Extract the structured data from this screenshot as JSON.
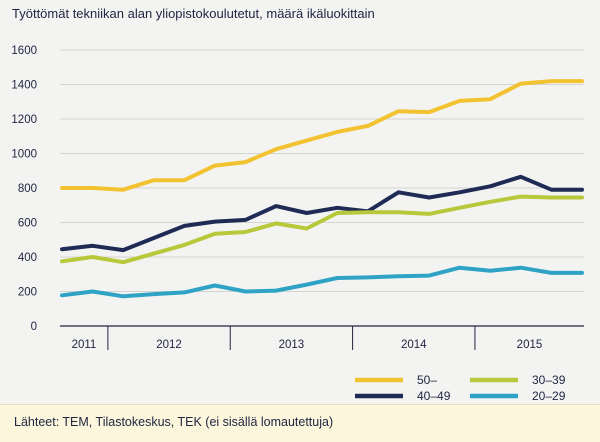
{
  "title": "Työttömät tekniikan alan yliopistokoulutetut, määrä ikäluokittain",
  "source": "Lähteet: TEM, Tilastokeskus, TEK (ei sisällä lomautettuja)",
  "colors": {
    "background": "#f3f4f2",
    "footer": "#fbf6dc",
    "axis": "#1f2440"
  },
  "chart_data": {
    "type": "line",
    "title": "Työttömät tekniikan alan yliopistokoulutetut, määrä ikäluokittain",
    "xlabel": "",
    "ylabel": "",
    "ylim": [
      0,
      1600
    ],
    "yticks": [
      0,
      200,
      400,
      600,
      800,
      1000,
      1200,
      1400,
      1600
    ],
    "year_labels": [
      "2011",
      "2012",
      "2013",
      "2014",
      "2015"
    ],
    "x": [
      "2011 Q3",
      "2011 Q4",
      "2012 Q1",
      "2012 Q2",
      "2012 Q3",
      "2012 Q4",
      "2013 Q1",
      "2013 Q2",
      "2013 Q3",
      "2013 Q4",
      "2014 Q1",
      "2014 Q2",
      "2014 Q3",
      "2014 Q4",
      "2015 Q1",
      "2015 Q2",
      "2015 Q3",
      "2015 Q4"
    ],
    "grid": true,
    "legend_position": "bottom-right",
    "series": [
      {
        "name": "50–",
        "color": "#f2c230",
        "values": [
          800,
          800,
          790,
          845,
          845,
          930,
          950,
          1025,
          1075,
          1125,
          1160,
          1245,
          1240,
          1305,
          1315,
          1405,
          1420,
          1420
        ]
      },
      {
        "name": "40–49",
        "color": "#1f2a55",
        "values": [
          445,
          465,
          440,
          510,
          580,
          605,
          615,
          695,
          655,
          685,
          665,
          775,
          745,
          775,
          810,
          865,
          790,
          790
        ]
      },
      {
        "name": "30–39",
        "color": "#b7c83a",
        "values": [
          375,
          400,
          370,
          420,
          470,
          535,
          545,
          595,
          565,
          655,
          660,
          660,
          650,
          685,
          720,
          750,
          745,
          745
        ]
      },
      {
        "name": "20–29",
        "color": "#2fa3c5",
        "values": [
          178,
          200,
          172,
          185,
          195,
          235,
          200,
          205,
          240,
          278,
          282,
          288,
          292,
          338,
          320,
          338,
          308,
          308
        ]
      }
    ]
  }
}
